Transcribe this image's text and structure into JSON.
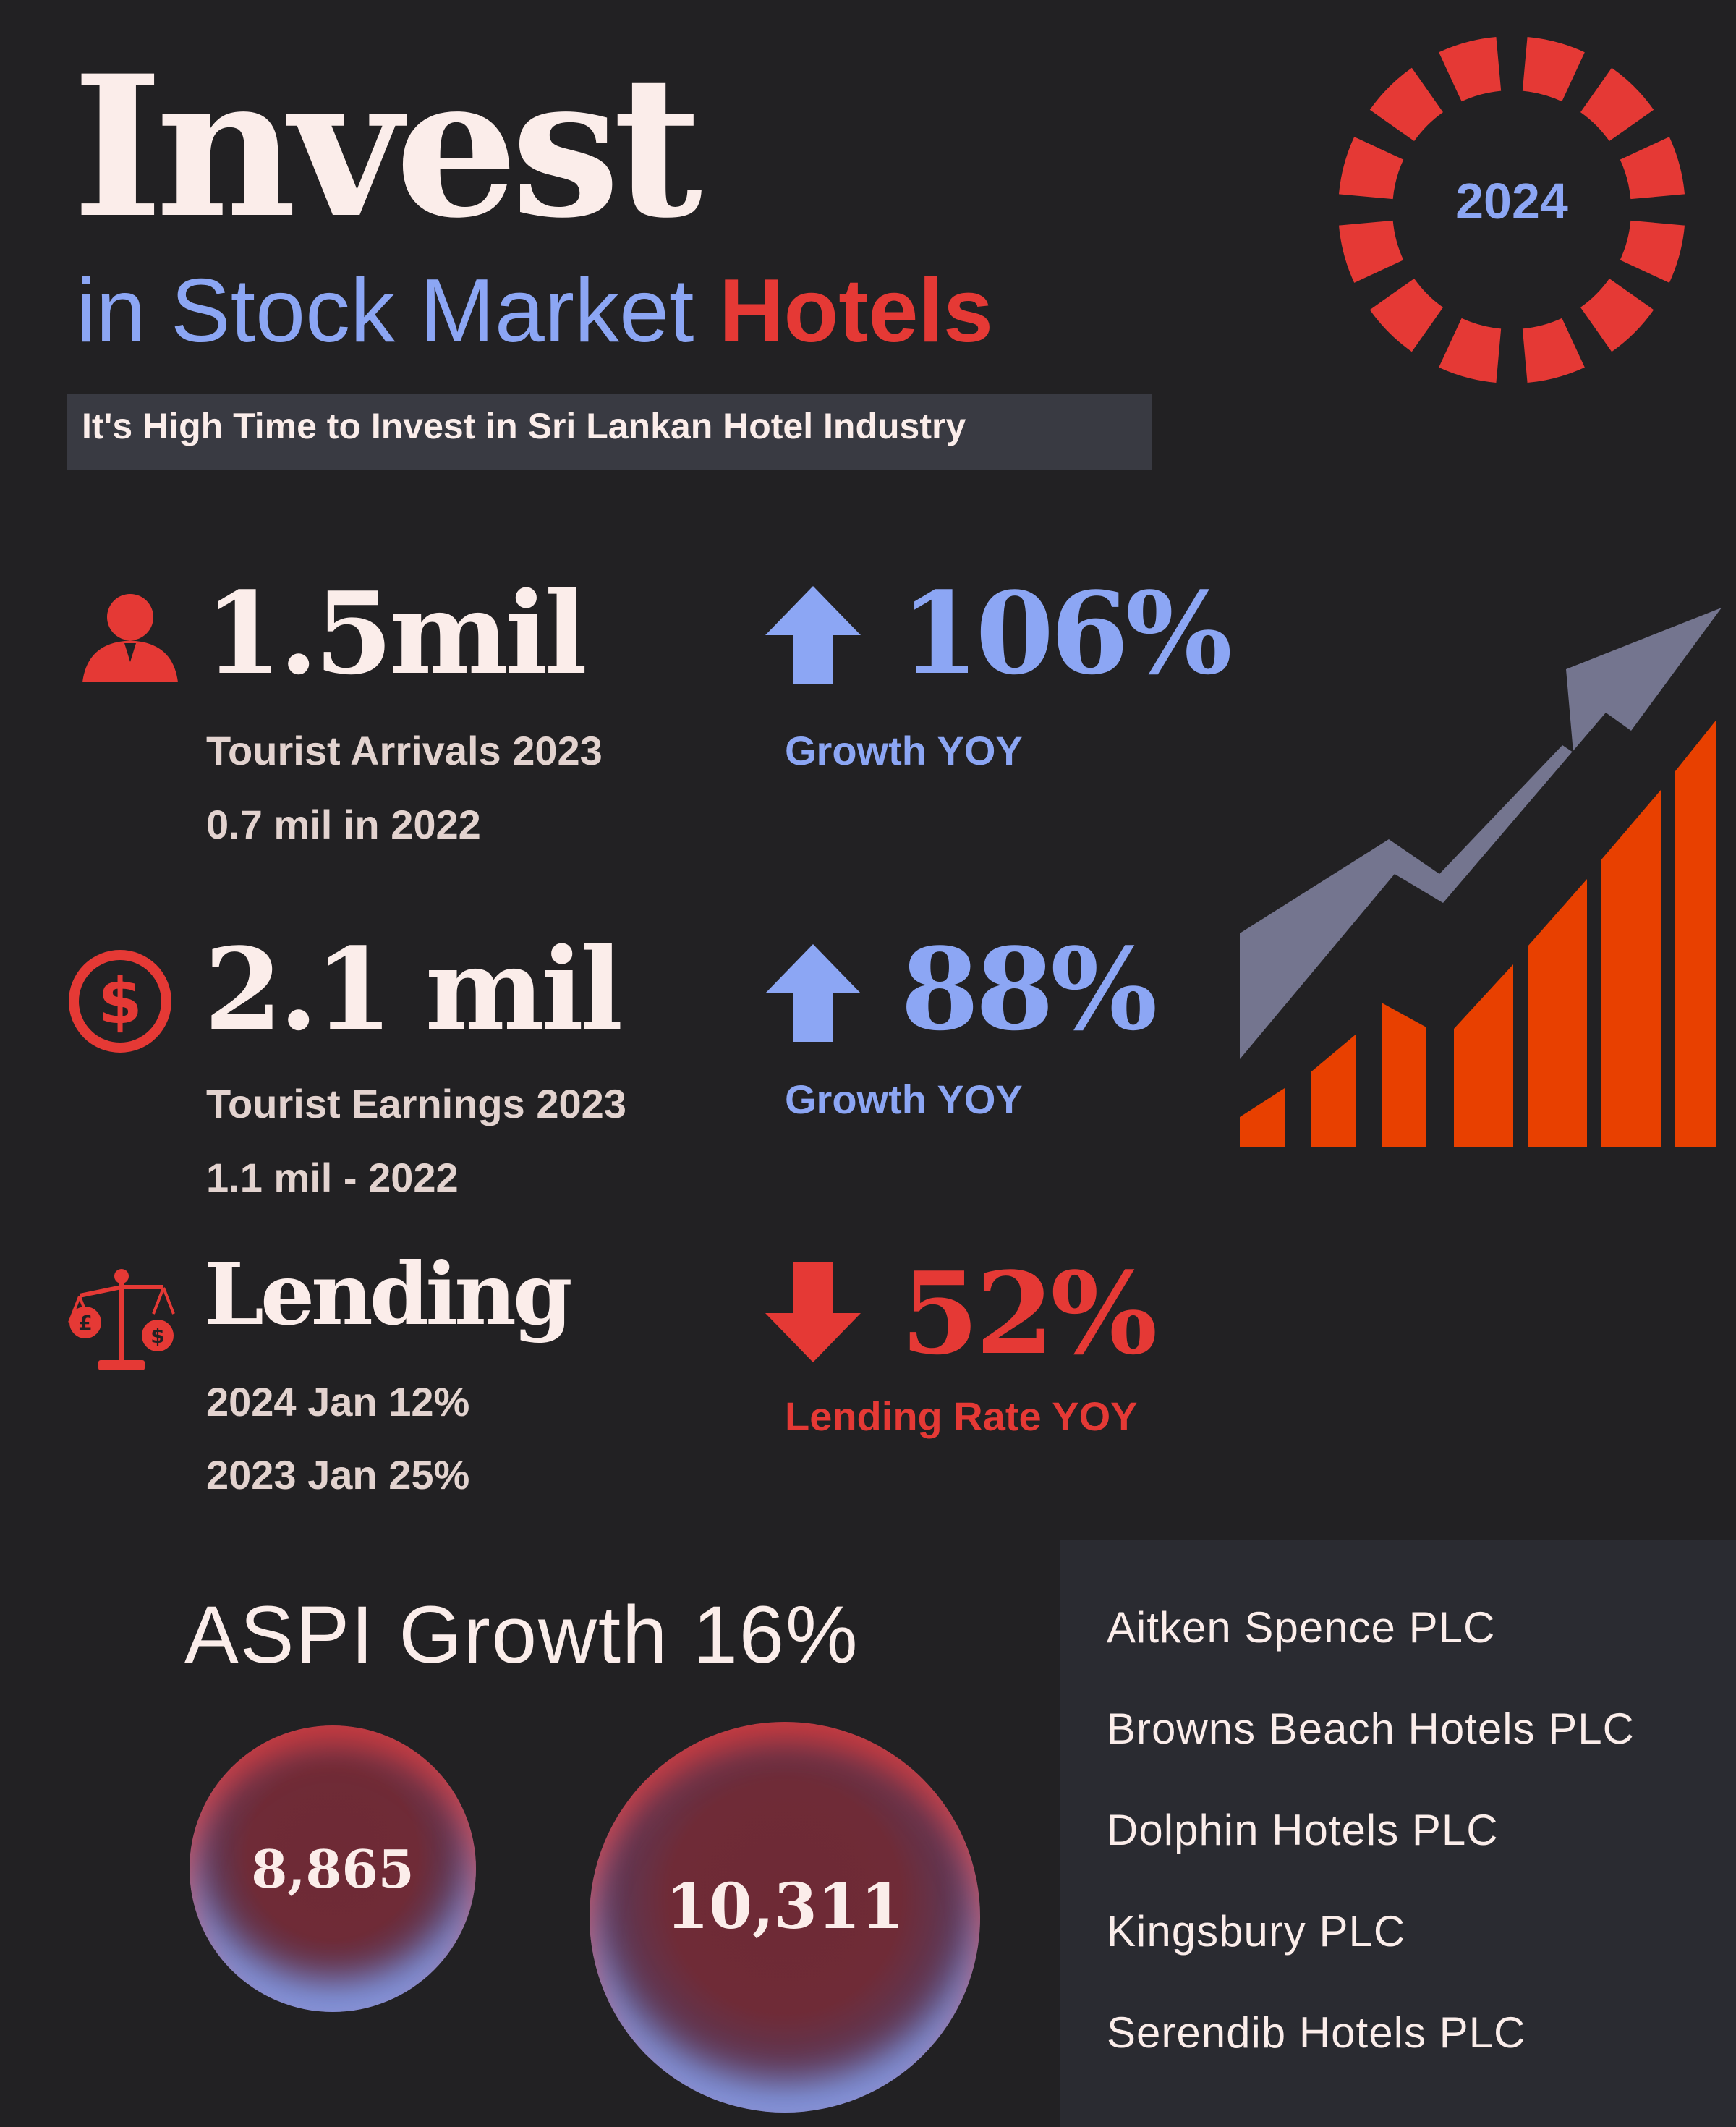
{
  "header": {
    "title": "Invest",
    "subtitle_prefix": "in Stock Market",
    "subtitle_highlight": "Hotels",
    "tagline": "It's High Time to Invest in Sri Lankan Hotel Industry"
  },
  "badge": {
    "year": "2024"
  },
  "stats": [
    {
      "icon": "person-icon",
      "value": "1.5mil",
      "line1": "Tourist Arrivals 2023",
      "line2": "0.7 mil in 2022",
      "change": "106%",
      "change_direction": "up",
      "change_label": "Growth YOY"
    },
    {
      "icon": "dollar-circle-icon",
      "value": "2.1 mil",
      "line1": "Tourist Earnings 2023",
      "line2": "1.1 mil - 2022",
      "change": "88%",
      "change_direction": "up",
      "change_label": "Growth YOY"
    },
    {
      "icon": "balance-scale-icon",
      "value": "Lending",
      "line1": "2024 Jan 12%",
      "line2": "2023 Jan 25%",
      "change": "52%",
      "change_direction": "down",
      "change_label": "Lending Rate YOY"
    }
  ],
  "aspi": {
    "title": "ASPI Growth 16%",
    "values": [
      "8,865",
      "10,311"
    ]
  },
  "companies": [
    "Aitken Spence PLC",
    "Browns Beach Hotels PLC",
    "Dolphin Hotels PLC",
    "Kingsbury PLC",
    "Serendib Hotels PLC"
  ],
  "colors": {
    "background": "#222123",
    "accent_red": "#E53935",
    "accent_blue": "#8CA6F4",
    "cream": "#FBEDEA",
    "bar_orange": "#E84000",
    "arrow_slate": "#74758F"
  }
}
